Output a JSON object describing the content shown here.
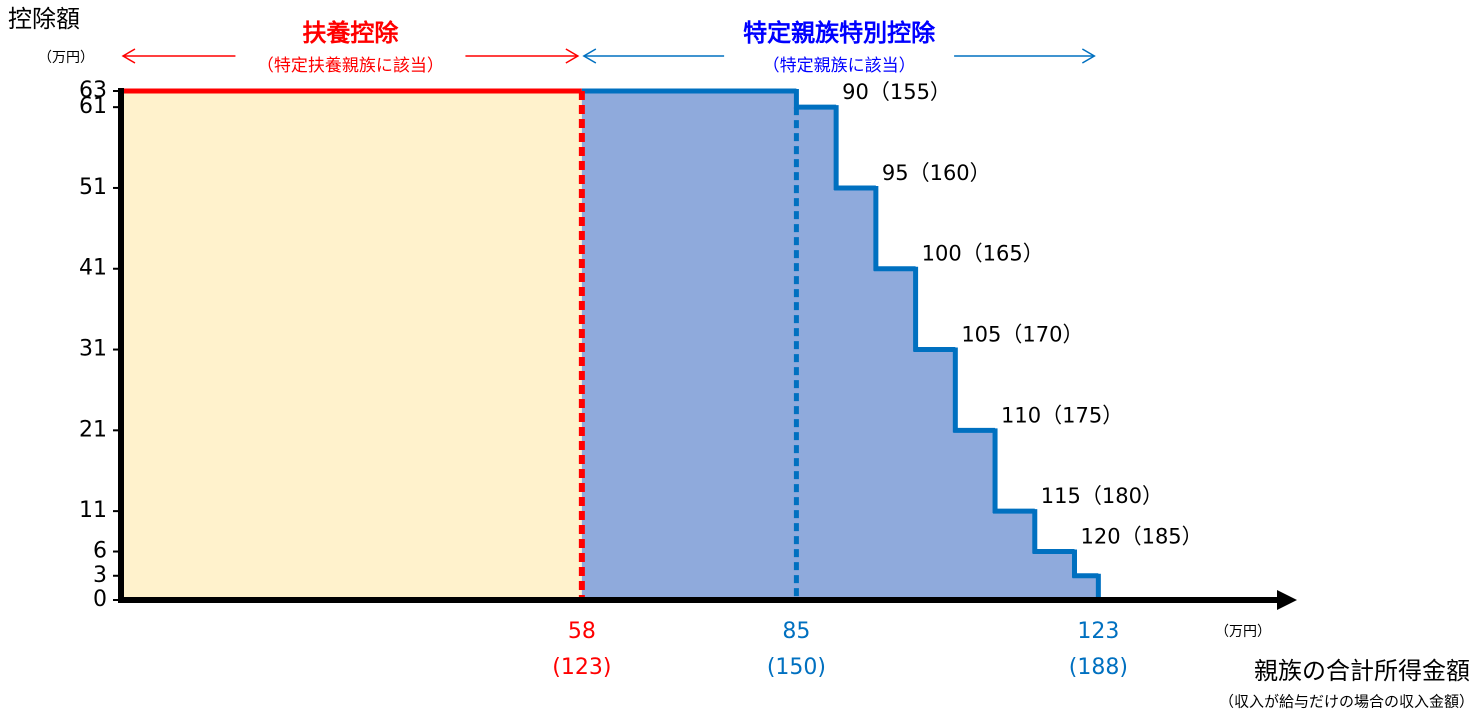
{
  "chart_data": {
    "type": "step",
    "y_label": "控除額",
    "y_unit": "（万円）",
    "x_label": "親族の合計所得金額",
    "x_sublabel": "（収入が給与だけの場合の収入金額）",
    "x_unit": "（万円）",
    "regions": [
      {
        "name": "扶養控除",
        "note": "（特定扶養親族に該当）",
        "from": 0,
        "to": 58,
        "color": "#ff0000",
        "fill": "#fff2cc"
      },
      {
        "name": "特定親族特別控除",
        "note": "（特定親族に該当）",
        "from": 58,
        "to": 123,
        "color": "#0070c0",
        "fill": "#8faadc",
        "title_color": "#0000ff"
      }
    ],
    "x": [
      0,
      85,
      90,
      95,
      100,
      105,
      110,
      115,
      120,
      123
    ],
    "values": [
      63,
      61,
      51,
      41,
      31,
      21,
      11,
      6,
      3,
      0
    ],
    "step_labels": [
      null,
      null,
      "90（155）",
      "95（160）",
      "100（165）",
      "105（170）",
      "110（175）",
      "115（180）",
      "120（185）",
      null
    ],
    "xlim": [
      0,
      148
    ],
    "ylim": [
      0,
      63
    ],
    "yticks": [
      0,
      3,
      6,
      11,
      21,
      31,
      41,
      51,
      61,
      63
    ],
    "xticks": [
      58,
      85,
      123
    ],
    "xtick_sublabels": [
      "(123)",
      "(150)",
      "(188)"
    ],
    "xtick_colors": [
      "#ff0000",
      "#0070c0",
      "#0070c0"
    ]
  }
}
